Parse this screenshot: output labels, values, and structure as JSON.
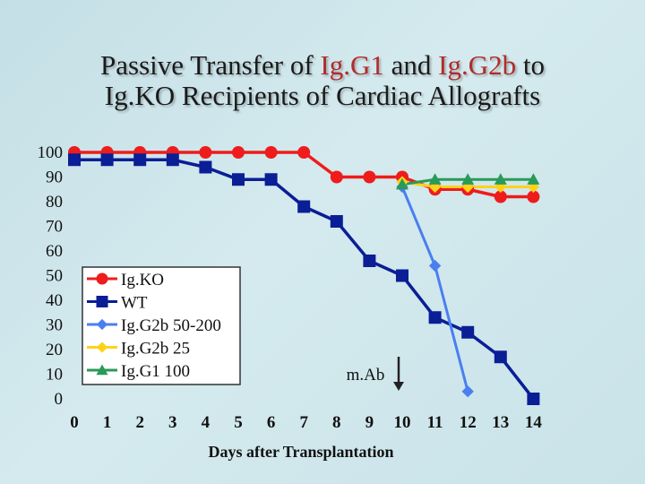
{
  "title": {
    "line1_parts": [
      "Passive Transfer of ",
      "Ig.G1",
      " and ",
      "Ig.G2b",
      " to"
    ],
    "line2": "Ig.KO Recipients of Cardiac Allografts"
  },
  "colors": {
    "accent": "#b32a2a",
    "background": "#cfe6eb"
  },
  "chart_data": {
    "type": "line",
    "title": "Passive Transfer of Ig.G1 and Ig.G2b to Ig.KO Recipients of Cardiac Allografts",
    "xlabel": "Days after Transplantation",
    "ylabel": "",
    "xlim": [
      0,
      14
    ],
    "ylim": [
      0,
      100
    ],
    "xticks": [
      0,
      1,
      2,
      3,
      4,
      5,
      6,
      7,
      8,
      9,
      10,
      11,
      12,
      13,
      14
    ],
    "yticks": [
      0,
      10,
      20,
      30,
      40,
      50,
      60,
      70,
      80,
      90,
      100
    ],
    "grid": false,
    "legend_position": "left",
    "annotation": {
      "text": "m.Ab",
      "x": 10
    },
    "series": [
      {
        "name": "Ig.KO",
        "color": "#ee1c1c",
        "marker": "circle",
        "x": [
          0,
          1,
          2,
          3,
          4,
          5,
          6,
          7,
          8,
          9,
          10,
          11,
          12,
          13,
          14
        ],
        "y": [
          100,
          100,
          100,
          100,
          100,
          100,
          100,
          100,
          90,
          90,
          90,
          85,
          85,
          82,
          82
        ]
      },
      {
        "name": "WT",
        "color": "#0a1e96",
        "marker": "square",
        "x": [
          0,
          1,
          2,
          3,
          4,
          5,
          6,
          7,
          8,
          9,
          10,
          11,
          12,
          13,
          14
        ],
        "y": [
          97,
          97,
          97,
          97,
          94,
          89,
          89,
          78,
          72,
          56,
          50,
          33,
          27,
          17,
          0
        ]
      },
      {
        "name": "Ig.G2b 50-200",
        "color": "#4a7ff0",
        "marker": "diamond",
        "x": [
          10,
          11,
          12
        ],
        "y": [
          86,
          54,
          3
        ]
      },
      {
        "name": "Ig.G2b 25",
        "color": "#ffd21a",
        "marker": "diamond",
        "x": [
          10,
          11,
          12,
          13,
          14
        ],
        "y": [
          88,
          86,
          86,
          86,
          86
        ]
      },
      {
        "name": "Ig.G1 100",
        "color": "#2a9a58",
        "marker": "triangle",
        "x": [
          10,
          11,
          12,
          13,
          14
        ],
        "y": [
          87,
          89,
          89,
          89,
          89
        ]
      }
    ]
  }
}
